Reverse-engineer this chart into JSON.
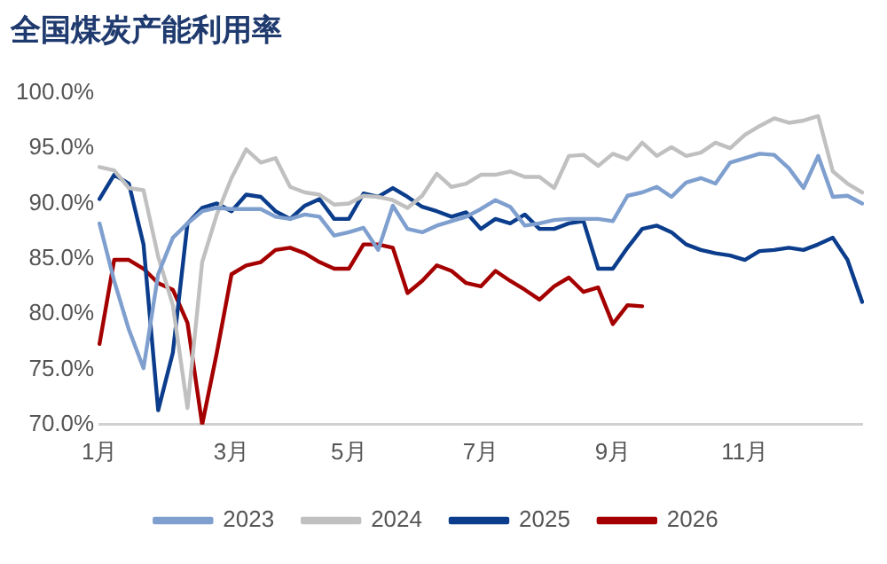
{
  "chart_data": {
    "type": "line",
    "title": "全国煤炭产能利用率",
    "categories": [
      "1月",
      null,
      null,
      null,
      null,
      null,
      null,
      null,
      null,
      "3月",
      null,
      null,
      null,
      null,
      null,
      null,
      null,
      "5月",
      null,
      null,
      null,
      null,
      null,
      null,
      null,
      null,
      "7月",
      null,
      null,
      null,
      null,
      null,
      null,
      null,
      null,
      "9月",
      null,
      null,
      null,
      null,
      null,
      null,
      null,
      null,
      "11月",
      null,
      null,
      null,
      null,
      null,
      null,
      null,
      null
    ],
    "ylim": [
      70,
      100
    ],
    "yticks": [
      {
        "value": 70,
        "label": "70.0%"
      },
      {
        "value": 75,
        "label": "75.0%"
      },
      {
        "value": 80,
        "label": "80.0%"
      },
      {
        "value": 85,
        "label": "85.0%"
      },
      {
        "value": 90,
        "label": "90.0%"
      },
      {
        "value": 95,
        "label": "95.0%"
      },
      {
        "value": 100,
        "label": "100.0%"
      }
    ],
    "legend": "bottom",
    "marker": "none",
    "series": [
      {
        "name": "2023",
        "color": "#7f9fcf",
        "values": [
          88.2,
          83,
          78.6,
          75.1,
          83.6,
          86.9,
          88.2,
          89.3,
          89.6,
          89.5,
          89.5,
          89.5,
          88.8,
          88.6,
          89,
          88.8,
          87.1,
          87.4,
          87.8,
          85.8,
          89.8,
          87.7,
          87.4,
          88,
          88.4,
          88.8,
          89.5,
          90.3,
          89.7,
          88,
          88.2,
          88.5,
          88.6,
          88.6,
          88.6,
          88.4,
          90.7,
          91,
          91.5,
          90.6,
          91.9,
          92.3,
          91.8,
          93.7,
          94.1,
          94.5,
          94.4,
          93.2,
          91.4,
          94.3,
          90.6,
          90.7,
          90
        ]
      },
      {
        "name": "2024",
        "color": "#c0c0c0",
        "values": [
          93.3,
          93,
          91.4,
          91.2,
          85.2,
          80.8,
          71.5,
          84.7,
          89,
          92.3,
          94.9,
          93.7,
          94.1,
          91.5,
          91,
          90.8,
          89.9,
          90,
          90.7,
          90.6,
          90.3,
          89.6,
          90.7,
          92.7,
          91.5,
          91.8,
          92.6,
          92.6,
          92.9,
          92.4,
          92.4,
          91.4,
          94.3,
          94.4,
          93.4,
          94.5,
          94,
          95.5,
          94.3,
          95.1,
          94.3,
          94.6,
          95.5,
          95,
          96.2,
          97,
          97.7,
          97.3,
          97.5,
          97.9,
          92.9,
          91.8,
          91
        ]
      },
      {
        "name": "2025",
        "color": "#0b3d8c",
        "values": [
          90.4,
          92.6,
          91.8,
          86.3,
          71.3,
          76.5,
          88.2,
          89.6,
          90,
          89.3,
          90.8,
          90.6,
          89.3,
          88.6,
          89.8,
          90.4,
          88.6,
          88.6,
          90.9,
          90.6,
          91.4,
          90.6,
          89.7,
          89.3,
          88.8,
          89.2,
          87.7,
          88.6,
          88.2,
          89,
          87.7,
          87.7,
          88.2,
          88.4,
          84.1,
          84.1,
          86,
          87.7,
          88,
          87.4,
          86.3,
          85.8,
          85.5,
          85.3,
          84.9,
          85.7,
          85.8,
          86,
          85.8,
          86.3,
          86.9,
          84.9,
          81.1
        ]
      },
      {
        "name": "2026",
        "color": "#a50000",
        "values": [
          77.3,
          84.9,
          84.9,
          84.1,
          82.8,
          82.2,
          79.2,
          70,
          76.5,
          83.6,
          84.4,
          84.7,
          85.8,
          86,
          85.5,
          84.7,
          84.1,
          84.1,
          86.3,
          86.3,
          86,
          81.9,
          83,
          84.4,
          83.9,
          82.8,
          82.5,
          83.9,
          83,
          82.2,
          81.3,
          82.5,
          83.3,
          82,
          82.4,
          79.1,
          80.8,
          80.7,
          null,
          null,
          null,
          null,
          null,
          null,
          null,
          null,
          null,
          null,
          null,
          null,
          null,
          null,
          null
        ]
      }
    ]
  }
}
